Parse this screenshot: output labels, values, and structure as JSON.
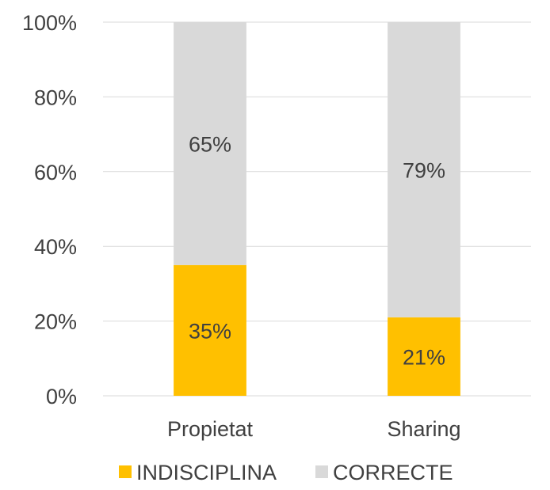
{
  "chart_data": {
    "type": "bar",
    "stacked": true,
    "percent_stacked": true,
    "categories": [
      "Propietat",
      "Sharing"
    ],
    "series": [
      {
        "name": "INDISCIPLINA",
        "values": [
          35,
          21
        ],
        "labels": [
          "35%",
          "21%"
        ],
        "color": "#FFC000"
      },
      {
        "name": "CORRECTE",
        "values": [
          65,
          79
        ],
        "labels": [
          "65%",
          "79%"
        ],
        "color": "#D9D9D9"
      }
    ],
    "ylim": [
      0,
      100
    ],
    "yticks": [
      "0%",
      "20%",
      "40%",
      "60%",
      "80%",
      "100%"
    ],
    "grid": true,
    "legend_position": "bottom"
  }
}
